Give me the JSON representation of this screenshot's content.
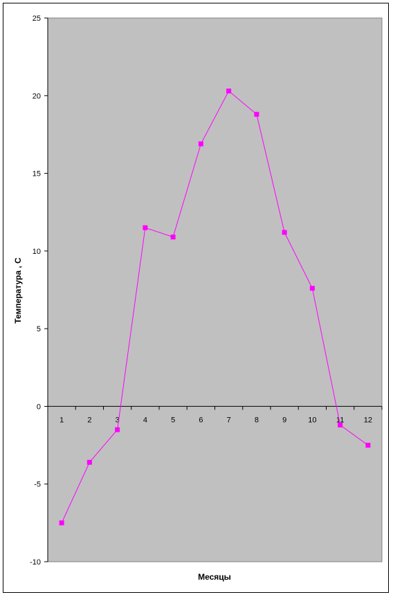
{
  "chart_data": {
    "type": "line",
    "xlabel": "Месяцы",
    "ylabel": "Температура , С",
    "x": [
      1,
      2,
      3,
      4,
      5,
      6,
      7,
      8,
      9,
      10,
      11,
      12
    ],
    "series": [
      {
        "values": [
          -7.5,
          -3.6,
          -1.5,
          11.5,
          10.9,
          16.9,
          20.3,
          18.8,
          11.2,
          7.6,
          -1.2,
          -2.5
        ]
      }
    ],
    "ylim": [
      -10,
      25
    ],
    "yticks": [
      25,
      20,
      15,
      10,
      5,
      0,
      -5,
      -10
    ],
    "xticks": [
      "1",
      "2",
      "3",
      "4",
      "5",
      "6",
      "7",
      "8",
      "9",
      "10",
      "11",
      "12"
    ],
    "grid": false,
    "colors": {
      "plot_area": "#c0c0c0",
      "series": "#ff00ff"
    }
  }
}
